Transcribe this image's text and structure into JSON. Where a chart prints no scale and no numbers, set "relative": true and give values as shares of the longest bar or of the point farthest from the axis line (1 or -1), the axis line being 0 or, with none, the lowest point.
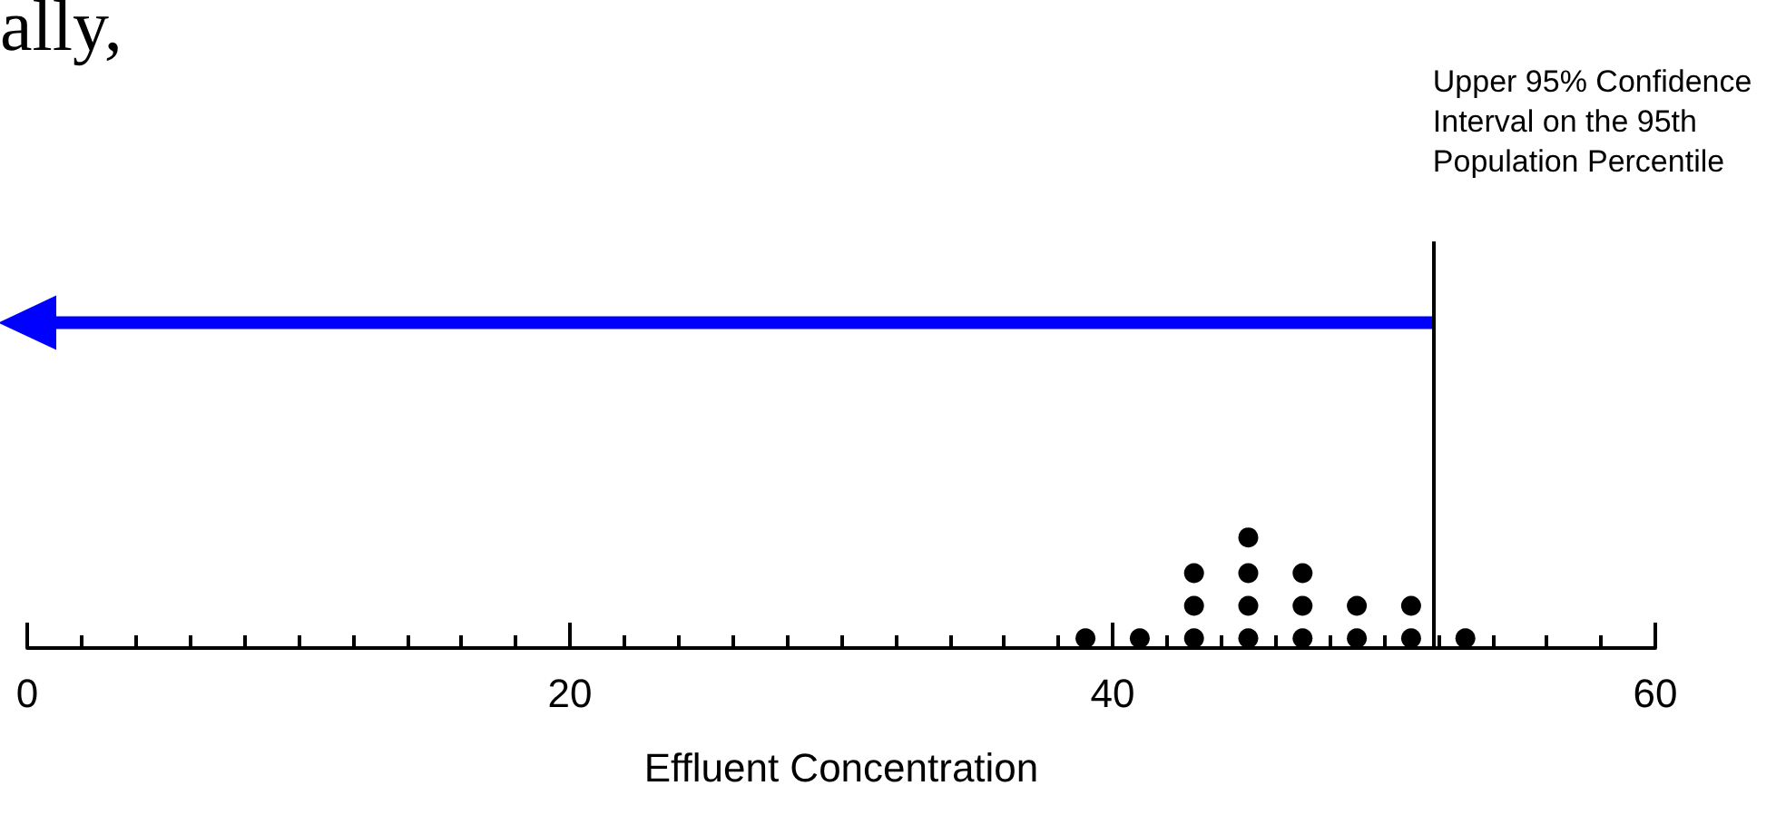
{
  "chart_data": {
    "type": "scatter",
    "relative": true,
    "xlabel": "Effluent Concentration",
    "annotations": [
      "ally,"
    ],
    "xlim": [
      0,
      60
    ],
    "xticks": [
      0,
      {
        "value": 2,
        "label": null
      },
      {
        "value": 4,
        "label": null
      },
      {
        "value": 6,
        "label": null
      },
      {
        "value": 8,
        "label": null
      },
      {
        "value": 10,
        "label": null
      },
      {
        "value": 12,
        "label": null
      },
      {
        "value": 14,
        "label": null
      },
      {
        "value": 16,
        "label": null
      },
      {
        "value": 18,
        "label": null
      },
      20,
      {
        "value": 22,
        "label": null
      },
      {
        "value": 24,
        "label": null
      },
      {
        "value": 26,
        "label": null
      },
      {
        "value": 28,
        "label": null
      },
      {
        "value": 30,
        "label": null
      },
      {
        "value": 32,
        "label": null
      },
      {
        "value": 34,
        "label": null
      },
      {
        "value": 36,
        "label": null
      },
      {
        "value": 38,
        "label": null
      },
      40,
      {
        "value": 42,
        "label": null
      },
      {
        "value": 44,
        "label": null
      },
      {
        "value": 46,
        "label": null
      },
      {
        "value": 48,
        "label": null
      },
      {
        "value": 50,
        "label": null
      },
      {
        "value": 52,
        "label": null
      },
      {
        "value": 54,
        "label": null
      },
      {
        "value": 56,
        "label": null
      },
      {
        "value": 58,
        "label": null
      },
      60
    ],
    "series": [
      {
        "color": "#000000",
        "marker": "circle",
        "x": [
          39,
          41,
          43,
          43,
          43,
          45,
          45,
          45,
          45,
          47,
          47,
          47,
          49,
          49,
          51,
          51,
          53
        ],
        "values": [
          0.03,
          0.03,
          0.03,
          0.13,
          0.23,
          0.03,
          0.13,
          0.23,
          0.34,
          0.03,
          0.13,
          0.23,
          0.03,
          0.13,
          0.03,
          0.13,
          0.03
        ]
      },
      {
        "type": "line",
        "color": "#0000ff",
        "marker": "triangle",
        "x": [
          0,
          51.8
        ],
        "values": [
          1,
          1
        ]
      }
    ],
    "ref_lines": [
      {
        "axis": "x",
        "value": 51.8,
        "label": "Upper 95% Confidence Interval on the 95th Population Percentile",
        "color": "#000000"
      }
    ]
  }
}
